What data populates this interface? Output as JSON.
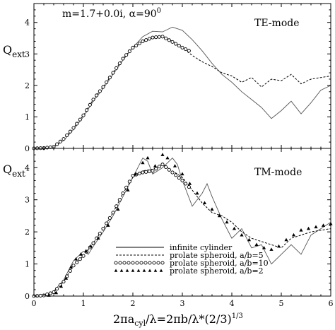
{
  "chart_data": [
    {
      "type": "line",
      "title": "",
      "mode_label": "TE-mode",
      "annotation": "m=1.7+0.0i,  α=90",
      "annotation_sup": "0",
      "ylabel": "Q",
      "ylabel_sub": "ext",
      "xlabel": "",
      "xlim": [
        0,
        6
      ],
      "ylim": [
        0,
        4.6
      ],
      "yticks": [
        "0",
        "1",
        "2",
        "3",
        "4"
      ],
      "series": [
        {
          "name": "infinite cylinder",
          "style": "solid",
          "points": [
            [
              0,
              0
            ],
            [
              0.2,
              0.01
            ],
            [
              0.4,
              0.05
            ],
            [
              0.6,
              0.25
            ],
            [
              0.8,
              0.6
            ],
            [
              1.0,
              1.0
            ],
            [
              1.2,
              1.5
            ],
            [
              1.4,
              1.9
            ],
            [
              1.6,
              2.35
            ],
            [
              1.8,
              2.8
            ],
            [
              2.0,
              3.2
            ],
            [
              2.2,
              3.55
            ],
            [
              2.4,
              3.72
            ],
            [
              2.6,
              3.7
            ],
            [
              2.8,
              3.85
            ],
            [
              3.0,
              3.75
            ],
            [
              3.2,
              3.45
            ],
            [
              3.4,
              3.1
            ],
            [
              3.6,
              2.7
            ],
            [
              3.8,
              2.35
            ],
            [
              4.0,
              2.1
            ],
            [
              4.2,
              1.8
            ],
            [
              4.4,
              1.55
            ],
            [
              4.6,
              1.3
            ],
            [
              4.8,
              0.95
            ],
            [
              5.0,
              1.2
            ],
            [
              5.2,
              1.5
            ],
            [
              5.4,
              1.1
            ],
            [
              5.6,
              1.45
            ],
            [
              5.8,
              1.85
            ],
            [
              6.0,
              2.0
            ]
          ]
        },
        {
          "name": "prolate spheroid, a/b=5",
          "style": "dashed",
          "points": [
            [
              0,
              0
            ],
            [
              0.2,
              0.01
            ],
            [
              0.4,
              0.05
            ],
            [
              0.6,
              0.3
            ],
            [
              0.8,
              0.65
            ],
            [
              1.0,
              1.05
            ],
            [
              1.2,
              1.55
            ],
            [
              1.4,
              1.95
            ],
            [
              1.6,
              2.4
            ],
            [
              1.8,
              2.85
            ],
            [
              2.0,
              3.2
            ],
            [
              2.2,
              3.4
            ],
            [
              2.4,
              3.5
            ],
            [
              2.6,
              3.55
            ],
            [
              2.8,
              3.4
            ],
            [
              3.0,
              3.2
            ],
            [
              3.2,
              2.95
            ],
            [
              3.4,
              2.75
            ],
            [
              3.6,
              2.6
            ],
            [
              3.8,
              2.4
            ],
            [
              4.0,
              2.3
            ],
            [
              4.2,
              2.1
            ],
            [
              4.4,
              2.25
            ],
            [
              4.6,
              1.95
            ],
            [
              4.8,
              2.2
            ],
            [
              5.0,
              2.15
            ],
            [
              5.2,
              2.35
            ],
            [
              5.4,
              2.05
            ],
            [
              5.6,
              2.2
            ],
            [
              5.8,
              2.25
            ],
            [
              6.0,
              2.3
            ]
          ]
        },
        {
          "name": "prolate spheroid, a/b=10",
          "style": "open-circles",
          "points": [
            [
              0,
              0
            ],
            [
              0.2,
              0.01
            ],
            [
              0.4,
              0.05
            ],
            [
              0.6,
              0.3
            ],
            [
              0.8,
              0.65
            ],
            [
              1.0,
              1.05
            ],
            [
              1.2,
              1.55
            ],
            [
              1.4,
              1.95
            ],
            [
              1.6,
              2.4
            ],
            [
              1.8,
              2.85
            ],
            [
              2.0,
              3.2
            ],
            [
              2.2,
              3.4
            ],
            [
              2.4,
              3.52
            ],
            [
              2.6,
              3.55
            ],
            [
              2.8,
              3.38
            ],
            [
              3.0,
              3.2
            ],
            [
              3.2,
              3.05
            ]
          ]
        }
      ]
    },
    {
      "type": "line",
      "title": "",
      "mode_label": "TM-mode",
      "ylabel": "Q",
      "ylabel_sub": "ext",
      "xlabel": "2πa",
      "xlabel_sub": "cyl",
      "xlabel_rest": "/λ=2πb/λ*(2/3)",
      "xlabel_sup": "1/3",
      "xlim": [
        0,
        6
      ],
      "ylim": [
        0,
        4.6
      ],
      "xticks": [
        "0",
        "1",
        "2",
        "3",
        "4",
        "5",
        "6"
      ],
      "yticks": [
        "0",
        "1",
        "2",
        "3",
        "4"
      ],
      "series": [
        {
          "name": "infinite cylinder",
          "style": "solid",
          "points": [
            [
              0,
              0
            ],
            [
              0.2,
              0.02
            ],
            [
              0.4,
              0.15
            ],
            [
              0.6,
              0.5
            ],
            [
              0.8,
              1.1
            ],
            [
              1.0,
              1.4
            ],
            [
              1.1,
              1.3
            ],
            [
              1.2,
              1.55
            ],
            [
              1.4,
              2.0
            ],
            [
              1.6,
              2.5
            ],
            [
              1.8,
              3.1
            ],
            [
              2.0,
              3.7
            ],
            [
              2.1,
              4.0
            ],
            [
              2.2,
              4.3
            ],
            [
              2.3,
              4.2
            ],
            [
              2.4,
              3.8
            ],
            [
              2.6,
              4.0
            ],
            [
              2.8,
              4.3
            ],
            [
              2.9,
              4.1
            ],
            [
              3.0,
              3.6
            ],
            [
              3.2,
              2.8
            ],
            [
              3.4,
              3.2
            ],
            [
              3.5,
              3.5
            ],
            [
              3.6,
              3.1
            ],
            [
              3.8,
              2.4
            ],
            [
              4.0,
              1.8
            ],
            [
              4.2,
              2.1
            ],
            [
              4.4,
              1.5
            ],
            [
              4.6,
              1.6
            ],
            [
              4.8,
              1.0
            ],
            [
              5.0,
              1.3
            ],
            [
              5.2,
              1.6
            ],
            [
              5.4,
              1.3
            ],
            [
              5.6,
              1.9
            ],
            [
              5.8,
              2.1
            ],
            [
              6.0,
              2.3
            ]
          ]
        },
        {
          "name": "prolate spheroid, a/b=5",
          "style": "dashed",
          "points": [
            [
              0,
              0
            ],
            [
              0.2,
              0.02
            ],
            [
              0.4,
              0.12
            ],
            [
              0.6,
              0.45
            ],
            [
              0.8,
              0.95
            ],
            [
              1.0,
              1.25
            ],
            [
              1.2,
              1.65
            ],
            [
              1.4,
              2.1
            ],
            [
              1.6,
              2.6
            ],
            [
              1.8,
              3.2
            ],
            [
              2.0,
              3.7
            ],
            [
              2.2,
              3.9
            ],
            [
              2.4,
              3.95
            ],
            [
              2.6,
              4.1
            ],
            [
              2.8,
              3.9
            ],
            [
              3.0,
              3.7
            ],
            [
              3.2,
              3.3
            ],
            [
              3.4,
              2.9
            ],
            [
              3.6,
              2.6
            ],
            [
              3.8,
              2.5
            ],
            [
              4.0,
              2.3
            ],
            [
              4.2,
              2.0
            ],
            [
              4.4,
              1.8
            ],
            [
              4.6,
              1.7
            ],
            [
              4.8,
              1.6
            ],
            [
              5.0,
              1.5
            ],
            [
              5.2,
              1.8
            ],
            [
              5.4,
              1.9
            ],
            [
              5.6,
              2.0
            ],
            [
              5.8,
              2.05
            ],
            [
              6.0,
              2.1
            ]
          ]
        },
        {
          "name": "prolate spheroid, a/b=10",
          "style": "open-circles",
          "points": [
            [
              0,
              0
            ],
            [
              0.2,
              0.02
            ],
            [
              0.4,
              0.12
            ],
            [
              0.6,
              0.45
            ],
            [
              0.8,
              0.95
            ],
            [
              1.0,
              1.25
            ],
            [
              1.2,
              1.65
            ],
            [
              1.4,
              2.1
            ],
            [
              1.6,
              2.6
            ],
            [
              1.8,
              3.2
            ],
            [
              2.0,
              3.75
            ],
            [
              2.2,
              3.85
            ],
            [
              2.4,
              3.9
            ],
            [
              2.6,
              4.1
            ],
            [
              2.8,
              3.85
            ],
            [
              3.0,
              3.6
            ],
            [
              3.2,
              3.3
            ]
          ]
        },
        {
          "name": "prolate spheroid, a/b=2",
          "style": "filled-triangles",
          "points": [
            [
              0.3,
              0.02
            ],
            [
              0.45,
              0.1
            ],
            [
              0.55,
              0.3
            ],
            [
              0.65,
              0.55
            ],
            [
              0.75,
              0.9
            ],
            [
              0.85,
              1.15
            ],
            [
              0.95,
              1.3
            ],
            [
              1.05,
              1.4
            ],
            [
              1.15,
              1.55
            ],
            [
              1.3,
              1.8
            ],
            [
              1.5,
              2.2
            ],
            [
              1.7,
              2.7
            ],
            [
              1.9,
              3.3
            ],
            [
              2.05,
              3.8
            ],
            [
              2.2,
              4.15
            ],
            [
              2.3,
              4.3
            ],
            [
              2.45,
              4.05
            ],
            [
              2.6,
              4.4
            ],
            [
              2.7,
              4.3
            ],
            [
              2.85,
              4.05
            ],
            [
              3.0,
              3.8
            ],
            [
              3.15,
              3.5
            ],
            [
              3.3,
              3.2
            ],
            [
              3.45,
              2.9
            ],
            [
              3.6,
              2.7
            ],
            [
              3.75,
              2.5
            ],
            [
              3.9,
              2.3
            ],
            [
              4.05,
              2.1
            ],
            [
              4.2,
              1.9
            ],
            [
              4.35,
              1.75
            ],
            [
              4.5,
              1.6
            ],
            [
              4.65,
              1.5
            ],
            [
              4.8,
              1.45
            ],
            [
              4.95,
              1.55
            ],
            [
              5.1,
              1.75
            ],
            [
              5.25,
              1.9
            ],
            [
              5.4,
              2.05
            ],
            [
              5.55,
              2.1
            ],
            [
              5.7,
              2.15
            ],
            [
              5.85,
              2.2
            ],
            [
              6.0,
              2.25
            ]
          ]
        }
      ],
      "legend": {
        "placement": "lower-center",
        "entries": [
          "infinite cylinder",
          "prolate spheroid, a/b=5",
          "prolate spheroid, a/b=10",
          "prolate spheroid, a/b=2"
        ]
      }
    }
  ]
}
